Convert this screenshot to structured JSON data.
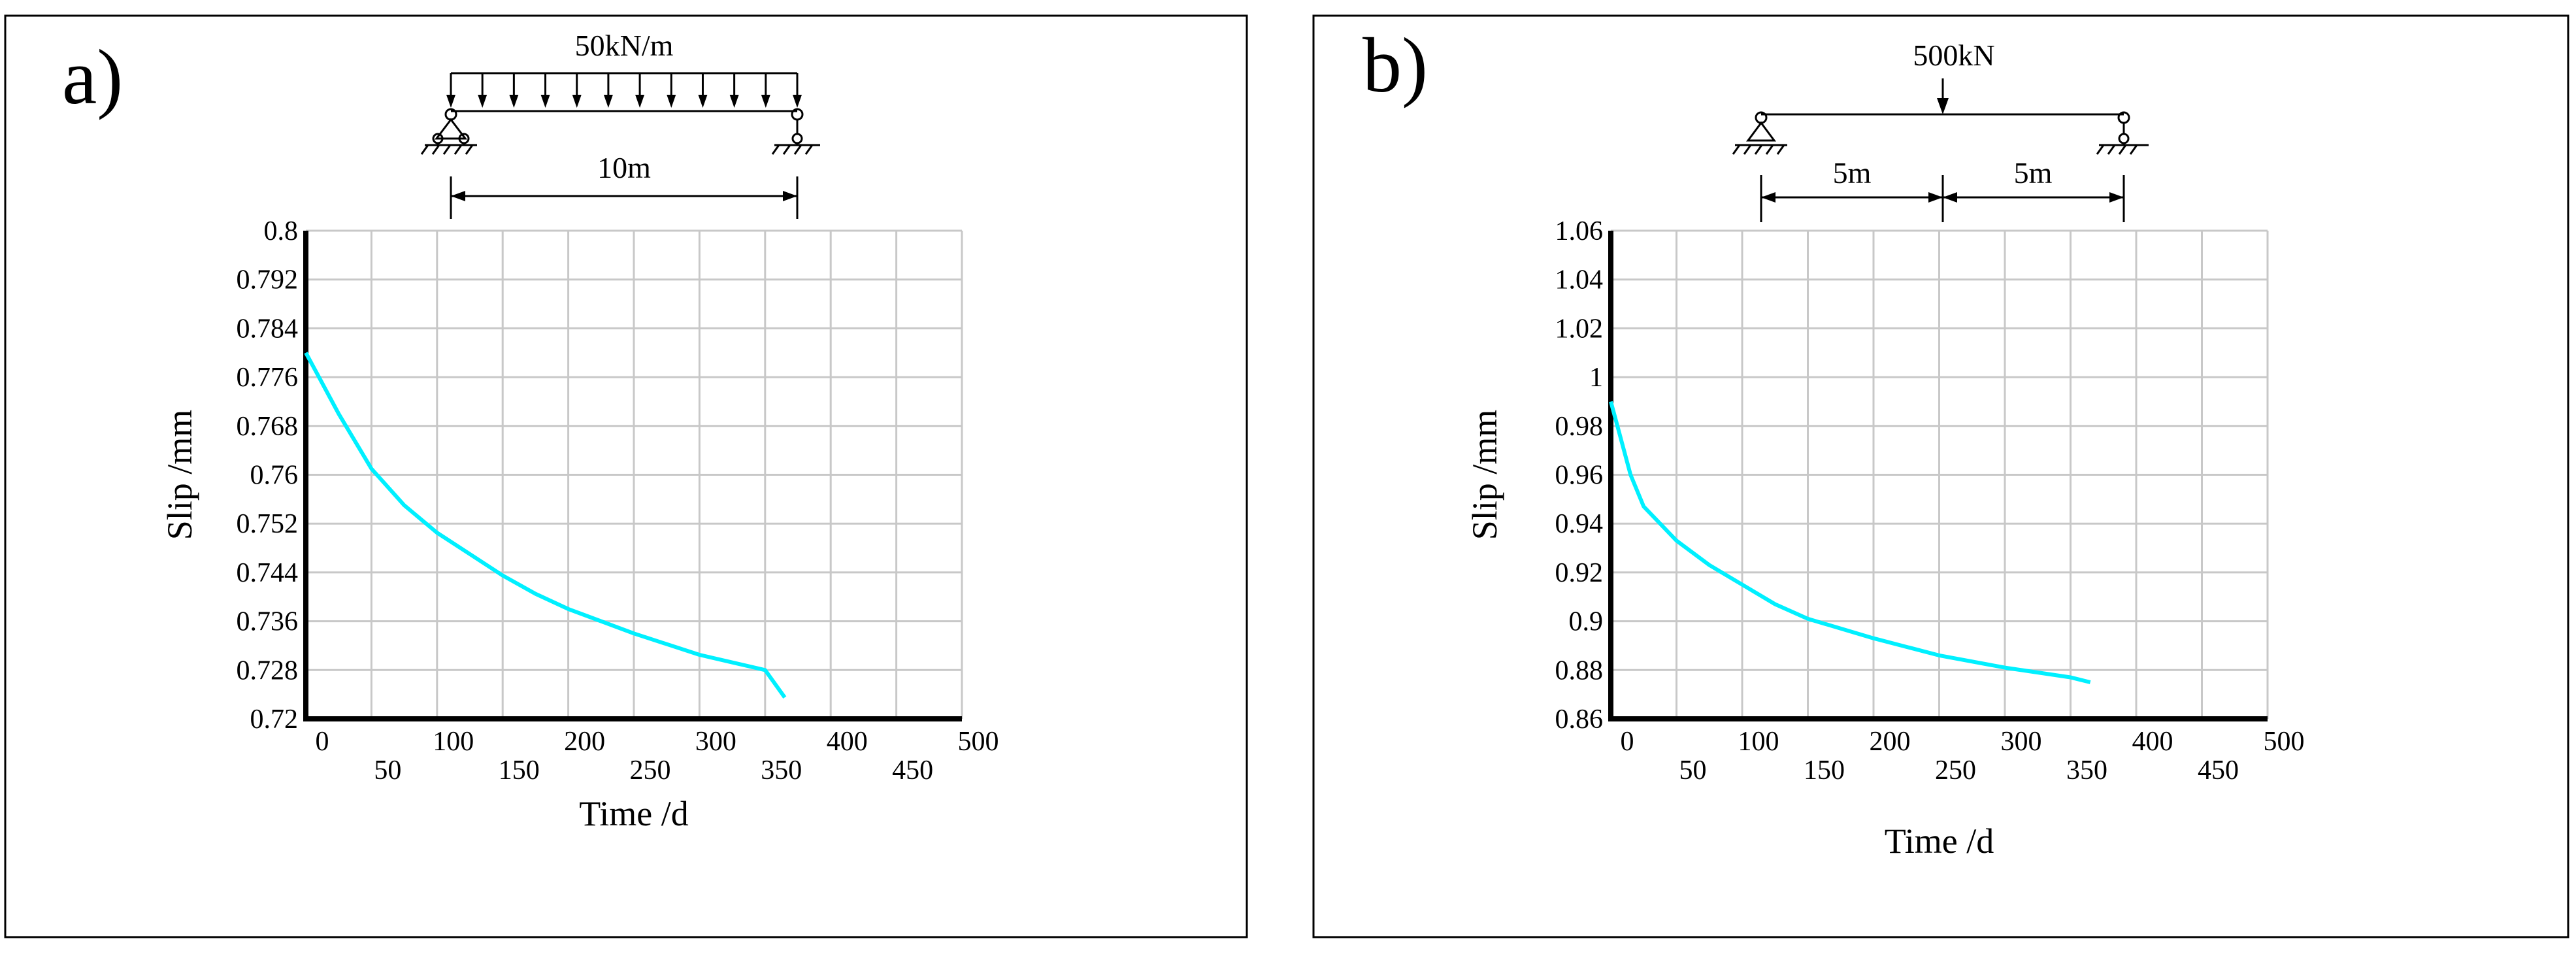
{
  "colors": {
    "curve": "#00f0ff",
    "grid": "#c8c8c8",
    "axis": "#000000"
  },
  "panels": [
    {
      "label": "a)",
      "load_label": "50kN/m",
      "span_labels": [
        "10m"
      ],
      "load_type": "uniformly-distributed",
      "chart_data": {
        "type": "line",
        "title": "",
        "xlabel": "Time /d",
        "ylabel": "Slip /mm",
        "xlim": [
          0,
          500
        ],
        "ylim": [
          0.72,
          0.8
        ],
        "x_ticks": [
          "0",
          "50",
          "100",
          "150",
          "200",
          "250",
          "300",
          "350",
          "400",
          "450",
          "500"
        ],
        "y_ticks": [
          "0.72",
          "0.728",
          "0.736",
          "0.744",
          "0.752",
          "0.76",
          "0.768",
          "0.776",
          "0.784",
          "0.792",
          "0.8"
        ],
        "grid": true,
        "series": [
          {
            "name": "slip",
            "x": [
              0,
              10,
              25,
              50,
              75,
              100,
              125,
              150,
              175,
              200,
              250,
              300,
              350,
              365
            ],
            "y": [
              0.78,
              0.776,
              0.77,
              0.761,
              0.755,
              0.7505,
              0.747,
              0.7435,
              0.7405,
              0.738,
              0.734,
              0.7305,
              0.728,
              0.7235
            ]
          }
        ]
      }
    },
    {
      "label": "b)",
      "load_label": "500kN",
      "span_labels": [
        "5m",
        "5m"
      ],
      "load_type": "point-load",
      "chart_data": {
        "type": "line",
        "title": "",
        "xlabel": "Time /d",
        "ylabel": "Slip /mm",
        "xlim": [
          0,
          500
        ],
        "ylim": [
          0.86,
          1.06
        ],
        "x_ticks": [
          "0",
          "50",
          "100",
          "150",
          "200",
          "250",
          "300",
          "350",
          "400",
          "450",
          "500"
        ],
        "y_ticks": [
          "0.86",
          "0.88",
          "0.9",
          "0.92",
          "0.94",
          "0.96",
          "0.98",
          "1",
          "1.02",
          "1.04",
          "1.06"
        ],
        "grid": true,
        "series": [
          {
            "name": "slip",
            "x": [
              0,
              5,
              15,
              25,
              50,
              75,
              100,
              125,
              150,
              200,
              250,
              300,
              350,
              365
            ],
            "y": [
              0.99,
              0.98,
              0.96,
              0.947,
              0.933,
              0.923,
              0.915,
              0.907,
              0.901,
              0.893,
              0.886,
              0.881,
              0.877,
              0.875
            ]
          }
        ]
      }
    }
  ]
}
